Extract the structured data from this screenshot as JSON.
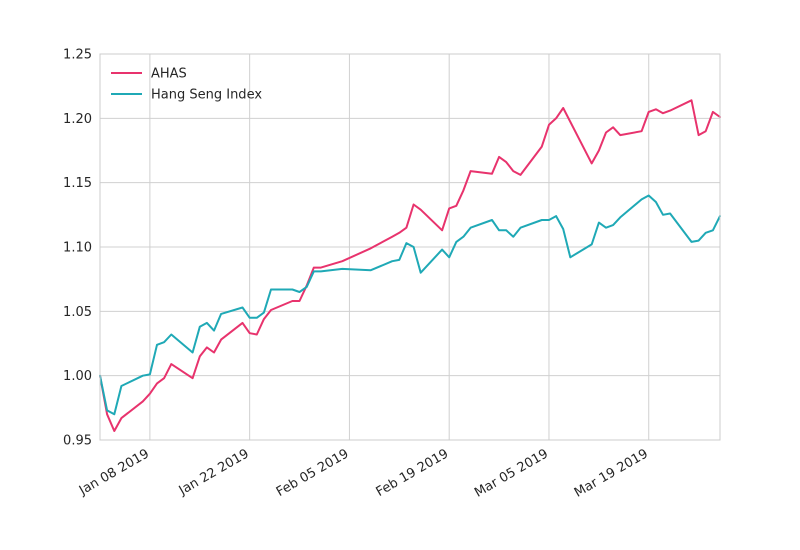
{
  "chart_data": {
    "type": "line",
    "ylim": [
      0.95,
      1.25
    ],
    "y_ticks": [
      "0.95",
      "1.00",
      "1.05",
      "1.10",
      "1.15",
      "1.20",
      "1.25"
    ],
    "x_range": [
      "2019-01-01",
      "2019-03-29"
    ],
    "x_ticks": [
      {
        "date": "2019-01-08",
        "label": "Jan 08 2019"
      },
      {
        "date": "2019-01-22",
        "label": "Jan 22 2019"
      },
      {
        "date": "2019-02-05",
        "label": "Feb 05 2019"
      },
      {
        "date": "2019-02-19",
        "label": "Feb 19 2019"
      },
      {
        "date": "2019-03-05",
        "label": "Mar 05 2019"
      },
      {
        "date": "2019-03-19",
        "label": "Mar 19 2019"
      }
    ],
    "grid": true,
    "legend_position": "top-left",
    "series": [
      {
        "name": "AHAS",
        "color": "#e8336d",
        "points": [
          [
            "2019-01-01",
            1.0
          ],
          [
            "2019-01-02",
            0.97
          ],
          [
            "2019-01-03",
            0.957
          ],
          [
            "2019-01-04",
            0.967
          ],
          [
            "2019-01-07",
            0.98
          ],
          [
            "2019-01-08",
            0.986
          ],
          [
            "2019-01-09",
            0.994
          ],
          [
            "2019-01-10",
            0.998
          ],
          [
            "2019-01-11",
            1.009
          ],
          [
            "2019-01-14",
            0.998
          ],
          [
            "2019-01-15",
            1.015
          ],
          [
            "2019-01-16",
            1.022
          ],
          [
            "2019-01-17",
            1.018
          ],
          [
            "2019-01-18",
            1.028
          ],
          [
            "2019-01-21",
            1.041
          ],
          [
            "2019-01-22",
            1.033
          ],
          [
            "2019-01-23",
            1.032
          ],
          [
            "2019-01-24",
            1.044
          ],
          [
            "2019-01-25",
            1.051
          ],
          [
            "2019-01-28",
            1.058
          ],
          [
            "2019-01-29",
            1.058
          ],
          [
            "2019-01-30",
            1.07
          ],
          [
            "2019-01-31",
            1.084
          ],
          [
            "2019-02-01",
            1.084
          ],
          [
            "2019-02-04",
            1.089
          ],
          [
            "2019-02-08",
            1.099
          ],
          [
            "2019-02-11",
            1.108
          ],
          [
            "2019-02-12",
            1.111
          ],
          [
            "2019-02-13",
            1.115
          ],
          [
            "2019-02-14",
            1.133
          ],
          [
            "2019-02-15",
            1.129
          ],
          [
            "2019-02-18",
            1.113
          ],
          [
            "2019-02-19",
            1.13
          ],
          [
            "2019-02-20",
            1.132
          ],
          [
            "2019-02-21",
            1.144
          ],
          [
            "2019-02-22",
            1.159
          ],
          [
            "2019-02-25",
            1.157
          ],
          [
            "2019-02-26",
            1.17
          ],
          [
            "2019-02-27",
            1.166
          ],
          [
            "2019-02-28",
            1.159
          ],
          [
            "2019-03-01",
            1.156
          ],
          [
            "2019-03-04",
            1.178
          ],
          [
            "2019-03-05",
            1.195
          ],
          [
            "2019-03-06",
            1.2
          ],
          [
            "2019-03-07",
            1.208
          ],
          [
            "2019-03-11",
            1.165
          ],
          [
            "2019-03-12",
            1.175
          ],
          [
            "2019-03-13",
            1.189
          ],
          [
            "2019-03-14",
            1.193
          ],
          [
            "2019-03-15",
            1.187
          ],
          [
            "2019-03-18",
            1.19
          ],
          [
            "2019-03-19",
            1.205
          ],
          [
            "2019-03-20",
            1.207
          ],
          [
            "2019-03-21",
            1.204
          ],
          [
            "2019-03-22",
            1.206
          ],
          [
            "2019-03-25",
            1.214
          ],
          [
            "2019-03-26",
            1.187
          ],
          [
            "2019-03-27",
            1.19
          ],
          [
            "2019-03-28",
            1.205
          ],
          [
            "2019-03-29",
            1.201
          ]
        ]
      },
      {
        "name": "Hang Seng Index",
        "color": "#1fa9b6",
        "points": [
          [
            "2019-01-01",
            1.0
          ],
          [
            "2019-01-02",
            0.973
          ],
          [
            "2019-01-03",
            0.97
          ],
          [
            "2019-01-04",
            0.992
          ],
          [
            "2019-01-07",
            1.0
          ],
          [
            "2019-01-08",
            1.001
          ],
          [
            "2019-01-09",
            1.024
          ],
          [
            "2019-01-10",
            1.026
          ],
          [
            "2019-01-11",
            1.032
          ],
          [
            "2019-01-14",
            1.018
          ],
          [
            "2019-01-15",
            1.038
          ],
          [
            "2019-01-16",
            1.041
          ],
          [
            "2019-01-17",
            1.035
          ],
          [
            "2019-01-18",
            1.048
          ],
          [
            "2019-01-21",
            1.053
          ],
          [
            "2019-01-22",
            1.045
          ],
          [
            "2019-01-23",
            1.045
          ],
          [
            "2019-01-24",
            1.049
          ],
          [
            "2019-01-25",
            1.067
          ],
          [
            "2019-01-28",
            1.067
          ],
          [
            "2019-01-29",
            1.065
          ],
          [
            "2019-01-30",
            1.069
          ],
          [
            "2019-01-31",
            1.081
          ],
          [
            "2019-02-01",
            1.081
          ],
          [
            "2019-02-04",
            1.083
          ],
          [
            "2019-02-08",
            1.082
          ],
          [
            "2019-02-11",
            1.089
          ],
          [
            "2019-02-12",
            1.09
          ],
          [
            "2019-02-13",
            1.103
          ],
          [
            "2019-02-14",
            1.1
          ],
          [
            "2019-02-15",
            1.08
          ],
          [
            "2019-02-18",
            1.098
          ],
          [
            "2019-02-19",
            1.092
          ],
          [
            "2019-02-20",
            1.104
          ],
          [
            "2019-02-21",
            1.108
          ],
          [
            "2019-02-22",
            1.115
          ],
          [
            "2019-02-25",
            1.121
          ],
          [
            "2019-02-26",
            1.113
          ],
          [
            "2019-02-27",
            1.113
          ],
          [
            "2019-02-28",
            1.108
          ],
          [
            "2019-03-01",
            1.115
          ],
          [
            "2019-03-04",
            1.121
          ],
          [
            "2019-03-05",
            1.121
          ],
          [
            "2019-03-06",
            1.124
          ],
          [
            "2019-03-07",
            1.114
          ],
          [
            "2019-03-08",
            1.092
          ],
          [
            "2019-03-11",
            1.102
          ],
          [
            "2019-03-12",
            1.119
          ],
          [
            "2019-03-13",
            1.115
          ],
          [
            "2019-03-14",
            1.117
          ],
          [
            "2019-03-15",
            1.123
          ],
          [
            "2019-03-18",
            1.137
          ],
          [
            "2019-03-19",
            1.14
          ],
          [
            "2019-03-20",
            1.135
          ],
          [
            "2019-03-21",
            1.125
          ],
          [
            "2019-03-22",
            1.126
          ],
          [
            "2019-03-25",
            1.104
          ],
          [
            "2019-03-26",
            1.105
          ],
          [
            "2019-03-27",
            1.111
          ],
          [
            "2019-03-28",
            1.113
          ],
          [
            "2019-03-29",
            1.124
          ]
        ]
      }
    ]
  }
}
